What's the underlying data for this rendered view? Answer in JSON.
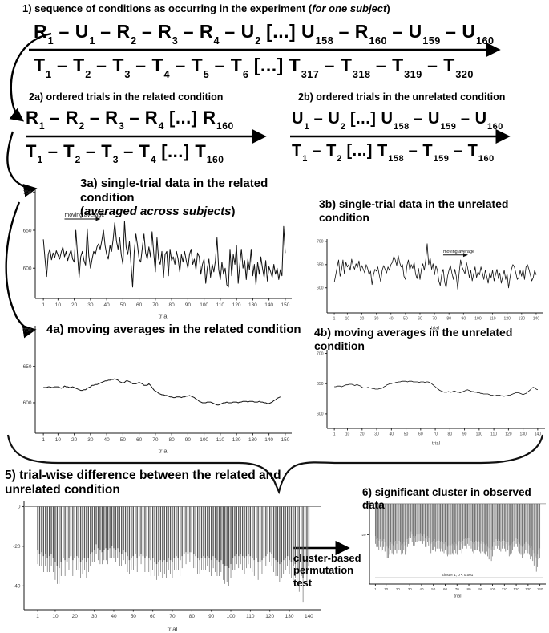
{
  "sections": {
    "s1": {
      "title_pre": "1) sequence of conditions as occurring in the experiment (",
      "title_em": "for one subject",
      "title_post": ")",
      "row_top": "R_1 – U_1 – R_2 – R_3 – R_4 – U_2 [...] U_158 – R_160 – U_159 – U_160",
      "row_bottom": "T_1 – T_2 – T_3 – T_4 – T_5 – T_6 [...] T_317 – T_318 – T_319 – T_320"
    },
    "s2a": {
      "title": "2a) ordered trials in the related condition",
      "row_top": "R_1 – R_2 – R_3 – R_4 [...] R_160",
      "row_bottom": "T_1 – T_2 – T_3 – T_4 [...] T_160"
    },
    "s2b": {
      "title": "2b) ordered trials in the unrelated condition",
      "row_top": "U_1 – U_2 [...] U_158 – U_159 – U_160",
      "row_bottom": "T_1 – T_2 [...] T_158 – T_159 – T_160"
    },
    "s3a": {
      "title": "3a) single-trial data in the related condition",
      "subtitle_pre": "(",
      "subtitle_em": "averaged across subjects",
      "subtitle_post": ")"
    },
    "s3b": {
      "title_line1": "3b) single-trial data in the unrelated",
      "title_line2": "condition"
    },
    "s4a": {
      "title": "4a) moving averages in the related condition"
    },
    "s4b": {
      "title_line1": "4b) moving averages in the unrelated",
      "title_line2": "condition"
    },
    "s5": {
      "title": "5) trial-wise difference between the related and unrelated condition"
    },
    "s6": {
      "title": "6) significant cluster in observed data"
    },
    "arrow_label": "cluster-based permutation test"
  },
  "colors": {
    "bar": "#565656",
    "line": "#111111",
    "axis": "#1a1a1a",
    "tick_label": "#404040"
  },
  "chart_data": [
    {
      "id": "c3a",
      "type": "line",
      "xlabel": "trial",
      "grid": false,
      "yticks": [
        600,
        650,
        700
      ],
      "xticks": [
        1,
        10,
        20,
        30,
        40,
        50,
        60,
        70,
        80,
        90,
        100,
        110,
        120,
        130,
        140,
        150
      ],
      "ylim": [
        560,
        704
      ],
      "x_range": [
        -4,
        154
      ],
      "fs": 6.5,
      "m": [
        30,
        10,
        6,
        26
      ],
      "lw": 1,
      "annotation": {
        "label": "moving average",
        "xi": 14,
        "yv": 668,
        "len": 40
      },
      "values": [
        638,
        612,
        589,
        618,
        625,
        611,
        620,
        614,
        623,
        617,
        612,
        621,
        628,
        615,
        622,
        610,
        618,
        624,
        612,
        608,
        650,
        618,
        588,
        615,
        622,
        610,
        604,
        652,
        616,
        600,
        612,
        622,
        618,
        628,
        632,
        625,
        636,
        650,
        630,
        618,
        612,
        630,
        622,
        638,
        660,
        636,
        625,
        640,
        618,
        605,
        662,
        628,
        618,
        635,
        605,
        575,
        622,
        645,
        630,
        612,
        608,
        628,
        645,
        620,
        612,
        628,
        615,
        648,
        620,
        595,
        640,
        612,
        605,
        622,
        588,
        618,
        622,
        590,
        625,
        610,
        615,
        605,
        622,
        612,
        595,
        618,
        608,
        622,
        610,
        600,
        618,
        625,
        605,
        612,
        598,
        620,
        615,
        592,
        605,
        612,
        580,
        600,
        612,
        588,
        605,
        595,
        610,
        640,
        598,
        585,
        608,
        592,
        600,
        578,
        575,
        625,
        590,
        618,
        605,
        630,
        580,
        605,
        625,
        600,
        610,
        585,
        612,
        598,
        625,
        590,
        605,
        578,
        608,
        592,
        615,
        600,
        588,
        610,
        583,
        602,
        595,
        588,
        605,
        592,
        600,
        585,
        598,
        590,
        655,
        620
      ]
    },
    {
      "id": "c3b",
      "type": "line",
      "xlabel": "trial",
      "grid": false,
      "yticks": [
        600,
        650,
        700
      ],
      "xticks": [
        1,
        10,
        20,
        30,
        40,
        50,
        60,
        70,
        80,
        90,
        100,
        110,
        120,
        130,
        140
      ],
      "ylim": [
        546,
        705
      ],
      "x_range": [
        -4,
        145
      ],
      "fs": 5,
      "m": [
        22,
        8,
        4,
        22
      ],
      "lw": 0.8,
      "annotation": {
        "label": "moving average",
        "xi": 76,
        "yv": 676,
        "len": 26
      },
      "values": [
        612,
        628,
        645,
        660,
        625,
        638,
        660,
        630,
        655,
        645,
        650,
        638,
        662,
        648,
        640,
        652,
        644,
        658,
        636,
        648,
        640,
        632,
        650,
        642,
        628,
        636,
        607,
        628,
        640,
        636,
        645,
        628,
        613,
        638,
        648,
        640,
        632,
        645,
        638,
        650,
        655,
        668,
        660,
        648,
        670,
        655,
        645,
        650,
        625,
        618,
        648,
        660,
        638,
        650,
        642,
        655,
        630,
        620,
        642,
        618,
        640,
        652,
        638,
        660,
        695,
        650,
        665,
        640,
        652,
        628,
        648,
        638,
        615,
        605,
        630,
        640,
        612,
        600,
        625,
        638,
        648,
        632,
        618,
        640,
        625,
        597,
        632,
        660,
        645,
        638,
        630,
        655,
        640,
        622,
        638,
        615,
        630,
        645,
        622,
        635,
        628,
        645,
        632,
        618,
        638,
        625,
        610,
        632,
        622,
        638,
        615,
        628,
        640,
        620,
        632,
        610,
        625,
        638,
        618,
        630,
        600,
        622,
        640,
        650,
        645,
        632,
        618,
        622,
        638,
        625,
        640,
        618,
        645,
        650,
        640,
        628,
        615,
        622,
        638,
        628
      ]
    },
    {
      "id": "c4a",
      "type": "line",
      "xlabel": "trial",
      "grid": false,
      "yticks": [
        600,
        650,
        700
      ],
      "xticks": [
        1,
        10,
        20,
        30,
        40,
        50,
        60,
        70,
        80,
        90,
        100,
        110,
        120,
        130,
        140,
        150
      ],
      "ylim": [
        558,
        706
      ],
      "x_range": [
        -4,
        154
      ],
      "fs": 6.5,
      "m": [
        30,
        10,
        6,
        26
      ],
      "lw": 1,
      "values": [
        621,
        621,
        621,
        622,
        622,
        621,
        621,
        622,
        622,
        622,
        621,
        620,
        621,
        623,
        622,
        622,
        621,
        621,
        622,
        621,
        620,
        619,
        618,
        617,
        617,
        618,
        618,
        620,
        621,
        622,
        624,
        624,
        625,
        625,
        626,
        627,
        628,
        629,
        630,
        630,
        631,
        631,
        632,
        632,
        633,
        632,
        631,
        629,
        628,
        627,
        628,
        630,
        630,
        629,
        628,
        626,
        626,
        626,
        627,
        628,
        627,
        626,
        624,
        624,
        624,
        626,
        624,
        621,
        618,
        616,
        615,
        613,
        612,
        611,
        611,
        610,
        610,
        609,
        608,
        608,
        607,
        607,
        608,
        608,
        608,
        607,
        608,
        608,
        609,
        609,
        610,
        609,
        608,
        607,
        605,
        604,
        602,
        601,
        600,
        600,
        600,
        601,
        601,
        601,
        600,
        599,
        598,
        597,
        597,
        598,
        599,
        600,
        600,
        601,
        600,
        600,
        600,
        601,
        601,
        601,
        600,
        601,
        601,
        602,
        602,
        602,
        601,
        602,
        602,
        602,
        601,
        601,
        601,
        602,
        601,
        601,
        600,
        600,
        599,
        599,
        600,
        601,
        603,
        604,
        606,
        607,
        608
      ]
    },
    {
      "id": "c4b",
      "type": "line",
      "xlabel": "trial",
      "grid": false,
      "yticks": [
        600,
        650,
        700
      ],
      "xticks": [
        1,
        10,
        20,
        30,
        40,
        50,
        60,
        70,
        80,
        90,
        100,
        110,
        120,
        130,
        140
      ],
      "ylim": [
        576,
        706
      ],
      "x_range": [
        -4,
        145
      ],
      "fs": 5,
      "m": [
        22,
        8,
        4,
        22
      ],
      "lw": 0.8,
      "values": [
        645,
        645,
        646,
        646,
        646,
        645,
        646,
        647,
        648,
        648,
        649,
        649,
        649,
        648,
        647,
        648,
        648,
        647,
        646,
        644,
        643,
        643,
        643,
        644,
        643,
        643,
        642,
        642,
        641,
        641,
        641,
        642,
        642,
        643,
        645,
        646,
        648,
        649,
        650,
        650,
        651,
        651,
        652,
        652,
        653,
        653,
        654,
        654,
        654,
        654,
        653,
        654,
        654,
        654,
        653,
        653,
        653,
        653,
        652,
        653,
        653,
        653,
        652,
        653,
        653,
        652,
        651,
        649,
        647,
        645,
        643,
        641,
        639,
        638,
        637,
        636,
        636,
        636,
        637,
        636,
        636,
        637,
        638,
        637,
        636,
        636,
        635,
        636,
        637,
        638,
        639,
        640,
        639,
        638,
        637,
        637,
        636,
        636,
        635,
        635,
        634,
        634,
        633,
        633,
        633,
        633,
        632,
        631,
        631,
        630,
        630,
        631,
        631,
        631,
        630,
        630,
        629,
        630,
        630,
        631,
        631,
        632,
        633,
        634,
        635,
        635,
        635,
        634,
        633,
        632,
        633,
        634,
        636,
        638,
        640,
        643,
        644,
        643,
        641,
        640
      ]
    },
    {
      "id": "c5",
      "type": "bar",
      "xlabel": "trial",
      "grid": false,
      "yticks": [
        0,
        -20,
        -40
      ],
      "xticks": [
        1,
        10,
        20,
        30,
        40,
        50,
        60,
        70,
        80,
        90,
        100,
        110,
        120,
        130,
        140
      ],
      "ylim": [
        -52,
        3
      ],
      "x_range": [
        -6,
        146
      ],
      "fs": 6.5,
      "m": [
        24,
        8,
        10,
        28
      ],
      "values": [
        -22,
        -24,
        -23,
        -25,
        -24,
        -26,
        -25,
        -24,
        -26,
        -28,
        -30,
        -31,
        -28,
        -26,
        -27,
        -28,
        -26,
        -25,
        -27,
        -26,
        -25,
        -26,
        -28,
        -27,
        -26,
        -28,
        -26,
        -24,
        -23,
        -22,
        -19,
        -21,
        -22,
        -23,
        -22,
        -21,
        -22,
        -21,
        -20,
        -21,
        -22,
        -21,
        -23,
        -24,
        -22,
        -23,
        -25,
        -27,
        -26,
        -25,
        -24,
        -26,
        -25,
        -24,
        -25,
        -26,
        -25,
        -26,
        -27,
        -26,
        -28,
        -29,
        -28,
        -27,
        -28,
        -27,
        -28,
        -26,
        -27,
        -28,
        -26,
        -25,
        -26,
        -27,
        -25,
        -24,
        -23,
        -24,
        -23,
        -23,
        -24,
        -25,
        -26,
        -27,
        -26,
        -25,
        -26,
        -25,
        -26,
        -27,
        -25,
        -26,
        -27,
        -28,
        -27,
        -29,
        -30,
        -30,
        -31,
        -29,
        -26,
        -25,
        -24,
        -25,
        -24,
        -25,
        -26,
        -25,
        -24,
        -25,
        -26,
        -27,
        -26,
        -28,
        -28,
        -27,
        -26,
        -25,
        -24,
        -23,
        -24,
        -26,
        -27,
        -28,
        -29,
        -28,
        -27,
        -26,
        -25,
        -27,
        -28,
        -30,
        -29,
        -31,
        -33,
        -35,
        -36,
        -34,
        -31,
        -30
      ],
      "err": [
        7,
        6,
        7,
        8,
        6,
        7,
        8,
        6,
        7,
        9,
        9,
        8,
        7,
        6,
        8,
        7,
        6,
        7,
        8,
        6,
        7,
        6,
        8,
        7,
        6,
        8,
        7,
        6,
        5,
        6,
        5,
        6,
        7,
        6,
        5,
        6,
        7,
        5,
        6,
        5,
        6,
        5,
        7,
        6,
        5,
        6,
        8,
        7,
        6,
        7,
        6,
        7,
        6,
        5,
        6,
        7,
        6,
        7,
        8,
        6,
        7,
        8,
        7,
        6,
        8,
        7,
        8,
        6,
        7,
        8,
        6,
        7,
        6,
        8,
        6,
        5,
        6,
        7,
        5,
        6,
        7,
        6,
        8,
        7,
        6,
        7,
        6,
        5,
        7,
        8,
        6,
        7,
        8,
        7,
        6,
        8,
        9,
        8,
        9,
        7,
        6,
        7,
        5,
        6,
        5,
        7,
        8,
        6,
        5,
        6,
        7,
        8,
        6,
        9,
        8,
        7,
        6,
        5,
        6,
        5,
        6,
        7,
        8,
        7,
        9,
        8,
        7,
        6,
        5,
        7,
        8,
        9,
        7,
        9,
        10,
        11,
        12,
        10,
        8,
        7
      ]
    },
    {
      "id": "c6",
      "type": "bar",
      "xlabel": "trial",
      "grid": false,
      "yticks": [
        0,
        -20
      ],
      "xticks": [
        1,
        10,
        20,
        30,
        40,
        50,
        60,
        70,
        80,
        90,
        100,
        110,
        120,
        130,
        140
      ],
      "ylim": [
        -52,
        2
      ],
      "x_range": [
        -4,
        145
      ],
      "fs": 4.5,
      "m": [
        18,
        6,
        4,
        18
      ],
      "sig": {
        "label": "cluster 1, p < 0.001",
        "yv": -48
      },
      "values": [
        -21,
        -23,
        -22,
        -24,
        -23,
        -25,
        -24,
        -23,
        -25,
        -27,
        -28,
        -29,
        -27,
        -25,
        -26,
        -27,
        -25,
        -24,
        -26,
        -25,
        -24,
        -25,
        -27,
        -26,
        -25,
        -27,
        -25,
        -23,
        -22,
        -21,
        -18,
        -20,
        -21,
        -22,
        -21,
        -20,
        -21,
        -20,
        -19,
        -20,
        -21,
        -20,
        -22,
        -23,
        -21,
        -22,
        -24,
        -26,
        -25,
        -24,
        -23,
        -25,
        -24,
        -23,
        -24,
        -25,
        -24,
        -25,
        -26,
        -25,
        -27,
        -28,
        -27,
        -26,
        -27,
        -26,
        -27,
        -25,
        -26,
        -27,
        -25,
        -24,
        -25,
        -26,
        -24,
        -23,
        -22,
        -23,
        -22,
        -22,
        -23,
        -24,
        -25,
        -26,
        -25,
        -24,
        -25,
        -24,
        -25,
        -26,
        -24,
        -25,
        -26,
        -27,
        -26,
        -28,
        -29,
        -29,
        -30,
        -28,
        -25,
        -24,
        -23,
        -24,
        -23,
        -24,
        -25,
        -24,
        -23,
        -24,
        -25,
        -26,
        -25,
        -27,
        -27,
        -26,
        -25,
        -24,
        -23,
        -22,
        -23,
        -25,
        -26,
        -27,
        -28,
        -27,
        -26,
        -25,
        -24,
        -26,
        -27,
        -29,
        -28,
        -30,
        -32,
        -34,
        -35,
        -33,
        -30,
        -29
      ],
      "err": [
        5,
        5,
        6,
        6,
        5,
        6,
        6,
        5,
        6,
        7,
        7,
        6,
        6,
        5,
        6,
        6,
        5,
        6,
        6,
        5,
        6,
        5,
        6,
        6,
        5,
        6,
        6,
        5,
        4,
        5,
        4,
        5,
        6,
        5,
        4,
        5,
        6,
        4,
        5,
        4,
        5,
        4,
        6,
        5,
        4,
        5,
        6,
        6,
        5,
        6,
        5,
        6,
        5,
        4,
        5,
        6,
        5,
        6,
        6,
        5,
        6,
        6,
        6,
        5,
        6,
        6,
        6,
        5,
        6,
        6,
        5,
        6,
        5,
        6,
        5,
        4,
        5,
        6,
        4,
        5,
        6,
        5,
        6,
        6,
        5,
        6,
        5,
        4,
        6,
        6,
        5,
        6,
        6,
        6,
        5,
        6,
        7,
        6,
        7,
        6,
        5,
        6,
        4,
        5,
        4,
        6,
        6,
        5,
        4,
        5,
        6,
        6,
        5,
        7,
        6,
        6,
        5,
        4,
        5,
        4,
        5,
        6,
        6,
        6,
        7,
        6,
        6,
        5,
        4,
        6,
        6,
        7,
        6,
        7,
        8,
        9,
        9,
        8,
        6,
        6
      ]
    }
  ]
}
